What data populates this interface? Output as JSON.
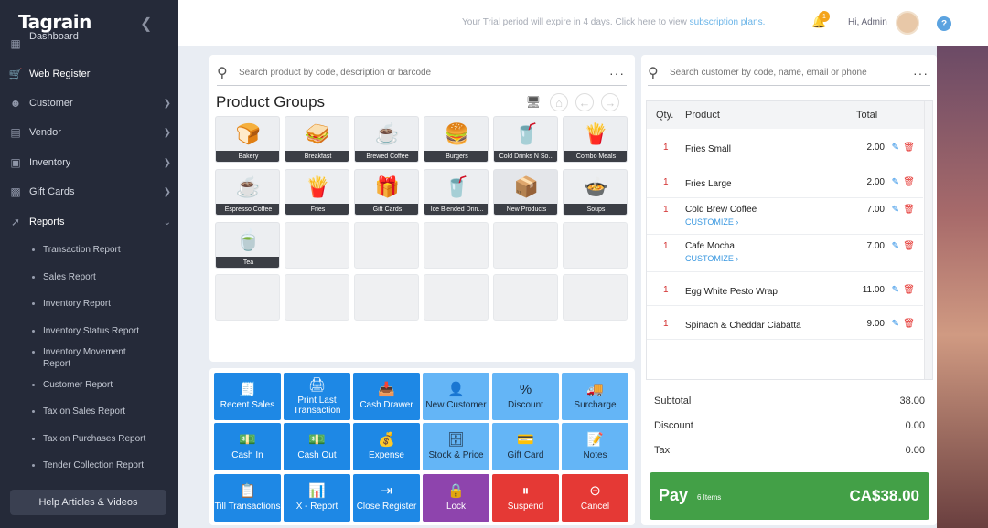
{
  "sidebar": {
    "logo": "Tagrain",
    "collapse_icon": "chevron-left-icon",
    "items": [
      {
        "label": "Dashboard",
        "icon": "dashboard-icon"
      },
      {
        "label": "Web Register",
        "icon": "cart-icon"
      },
      {
        "label": "Customer",
        "icon": "user-icon"
      },
      {
        "label": "Vendor",
        "icon": "building-icon"
      },
      {
        "label": "Inventory",
        "icon": "box-icon"
      },
      {
        "label": "Gift Cards",
        "icon": "gift-icon"
      },
      {
        "label": "Reports",
        "icon": "reports-icon"
      }
    ],
    "reports_sub": [
      "Transaction Report",
      "Sales Report",
      "Inventory Report",
      "Inventory Status Report",
      "Inventory Movement Report",
      "Customer Report",
      "Tax on Sales Report",
      "Tax on Purchases Report",
      "Tender Collection Report"
    ],
    "help_button": "Help Articles & Videos"
  },
  "topbar": {
    "trial_text": "Your Trial period will expire in 4 days. Click here to view",
    "trial_link": "subscription plans.",
    "notification_count": "1",
    "greeting": "Hi, Admin",
    "help": "?"
  },
  "products": {
    "search_placeholder": "Search product by code, description or barcode",
    "title": "Product Groups",
    "groups": [
      {
        "label": "Bakery",
        "icon": "🍞"
      },
      {
        "label": "Breakfast",
        "icon": "🥪"
      },
      {
        "label": "Brewed Coffee",
        "icon": "☕"
      },
      {
        "label": "Burgers",
        "icon": "🍔"
      },
      {
        "label": "Cold Drinks N So...",
        "icon": "🥤"
      },
      {
        "label": "Combo Meals",
        "icon": "🍟"
      },
      {
        "label": "Espresso Coffee",
        "icon": "☕"
      },
      {
        "label": "Fries",
        "icon": "🍟"
      },
      {
        "label": "Gift Cards",
        "icon": "🎁"
      },
      {
        "label": "Ice Blended Drin...",
        "icon": "🥤"
      },
      {
        "label": "New Products",
        "icon": "📦"
      },
      {
        "label": "Soups",
        "icon": "🍲"
      },
      {
        "label": "Tea",
        "icon": "🍵"
      }
    ]
  },
  "actions": [
    {
      "label": "Recent Sales",
      "icon": "🧾",
      "color": "blue"
    },
    {
      "label": "Print Last Transaction",
      "icon": "🖨",
      "color": "blue"
    },
    {
      "label": "Cash Drawer",
      "icon": "📥",
      "color": "blue"
    },
    {
      "label": "New Customer",
      "icon": "👤",
      "color": "lblue"
    },
    {
      "label": "Discount",
      "icon": "%",
      "color": "lblue"
    },
    {
      "label": "Surcharge",
      "icon": "🚚",
      "color": "lblue"
    },
    {
      "label": "Cash In",
      "icon": "💵",
      "color": "blue"
    },
    {
      "label": "Cash Out",
      "icon": "💵",
      "color": "blue"
    },
    {
      "label": "Expense",
      "icon": "💰",
      "color": "blue"
    },
    {
      "label": "Stock & Price",
      "icon": "🗄",
      "color": "lblue"
    },
    {
      "label": "Gift Card",
      "icon": "💳",
      "color": "lblue"
    },
    {
      "label": "Notes",
      "icon": "📝",
      "color": "lblue"
    },
    {
      "label": "Till Transactions",
      "icon": "📋",
      "color": "blue"
    },
    {
      "label": "X - Report",
      "icon": "📊",
      "color": "blue"
    },
    {
      "label": "Close Register",
      "icon": "⇥",
      "color": "blue"
    },
    {
      "label": "Lock",
      "icon": "🔒",
      "color": "purple"
    },
    {
      "label": "Suspend",
      "icon": "⏸",
      "color": "red"
    },
    {
      "label": "Cancel",
      "icon": "⊝",
      "color": "red"
    }
  ],
  "cart": {
    "search_placeholder": "Search customer by code, name, email or phone",
    "headers": {
      "qty": "Qty.",
      "product": "Product",
      "total": "Total"
    },
    "items": [
      {
        "qty": "1",
        "name": "Fries Small",
        "total": "2.00",
        "customize": ""
      },
      {
        "qty": "1",
        "name": "Fries Large",
        "total": "2.00",
        "customize": ""
      },
      {
        "qty": "1",
        "name": "Cold Brew Coffee",
        "total": "7.00",
        "customize": "CUSTOMIZE"
      },
      {
        "qty": "1",
        "name": "Cafe Mocha",
        "total": "7.00",
        "customize": "CUSTOMIZE"
      },
      {
        "qty": "1",
        "name": "Egg White Pesto Wrap",
        "total": "11.00",
        "customize": ""
      },
      {
        "qty": "1",
        "name": "Spinach & Cheddar Ciabatta",
        "total": "9.00",
        "customize": ""
      }
    ],
    "subtotal_label": "Subtotal",
    "subtotal": "38.00",
    "discount_label": "Discount",
    "discount": "0.00",
    "tax_label": "Tax",
    "tax": "0.00",
    "pay_label": "Pay",
    "pay_items": "6 Items",
    "pay_amount": "CA$38.00"
  }
}
